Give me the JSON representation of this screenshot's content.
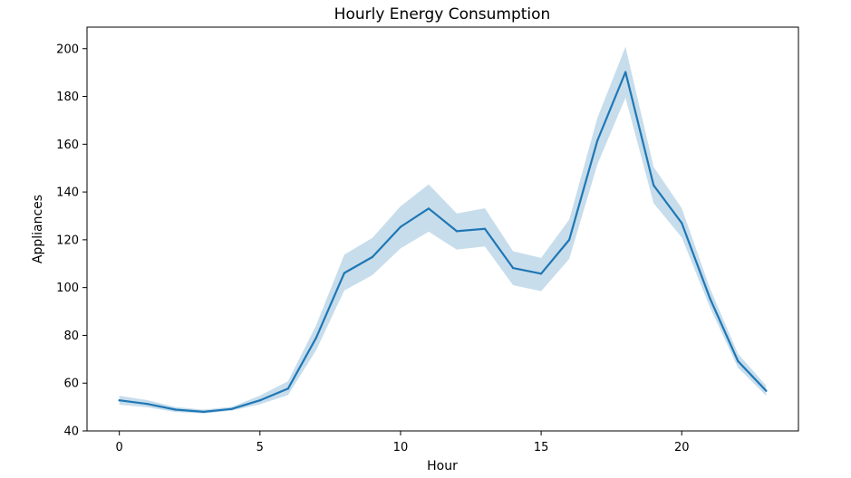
{
  "chart_data": {
    "type": "line",
    "title": "Hourly Energy Consumption",
    "xlabel": "Hour",
    "ylabel": "Appliances",
    "xlim": [
      -1.15,
      24.15
    ],
    "ylim": [
      40,
      209
    ],
    "xticks": [
      0,
      5,
      10,
      15,
      20
    ],
    "yticks": [
      40,
      60,
      80,
      100,
      120,
      140,
      160,
      180,
      200
    ],
    "grid": false,
    "legend": "none",
    "series": [
      {
        "color": "#1f77b4",
        "band_color": "#1f77b4",
        "x": [
          0,
          1,
          2,
          3,
          4,
          5,
          6,
          7,
          8,
          9,
          10,
          11,
          12,
          13,
          14,
          15,
          16,
          17,
          18,
          19,
          20,
          21,
          22,
          23
        ],
        "values": [
          52.8,
          51.3,
          48.9,
          48.0,
          49.2,
          52.8,
          57.7,
          79.0,
          106.1,
          112.8,
          125.4,
          133.1,
          123.6,
          124.6,
          108.2,
          105.8,
          120.0,
          161.5,
          190.2,
          142.8,
          127.0,
          95.6,
          69.2,
          56.8
        ],
        "lower": [
          51.0,
          49.9,
          47.9,
          47.3,
          48.5,
          51.2,
          55.0,
          73.8,
          98.8,
          105.2,
          116.4,
          123.4,
          115.9,
          117.2,
          101.0,
          98.5,
          112.0,
          151.5,
          179.5,
          135.3,
          121.0,
          91.8,
          66.5,
          54.8
        ],
        "upper": [
          54.7,
          52.9,
          50.0,
          48.9,
          50.1,
          54.8,
          60.8,
          84.3,
          113.8,
          120.8,
          134.0,
          143.2,
          131.0,
          133.2,
          115.2,
          112.4,
          128.5,
          171.0,
          200.8,
          150.5,
          133.2,
          99.8,
          72.3,
          59.0
        ]
      }
    ]
  }
}
